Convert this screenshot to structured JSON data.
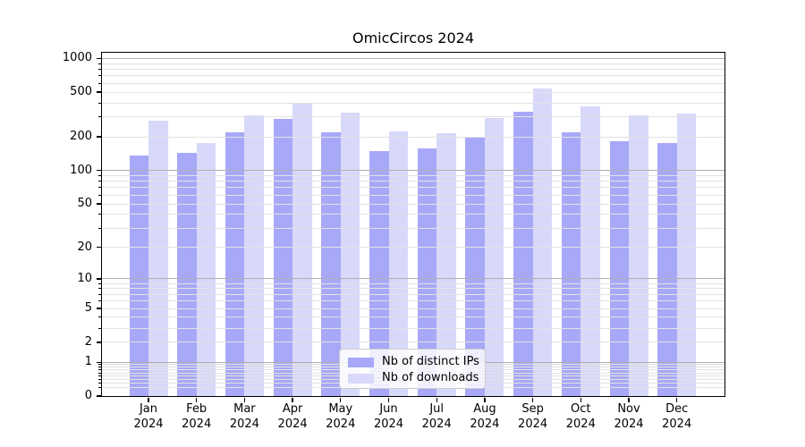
{
  "chart_data": {
    "type": "bar",
    "title": "OmicCircos 2024",
    "x_categories": [
      "Jan",
      "Feb",
      "Mar",
      "Apr",
      "May",
      "Jun",
      "Jul",
      "Aug",
      "Sep",
      "Oct",
      "Nov",
      "Dec"
    ],
    "x_year": "2024",
    "series": [
      {
        "name": "Nb of distinct IPs",
        "color": "#a8a8f8",
        "values": [
          137,
          143,
          218,
          291,
          218,
          148,
          157,
          200,
          333,
          221,
          183,
          176
        ]
      },
      {
        "name": "Nb of downloads",
        "color": "#d8d8fa",
        "values": [
          278,
          176,
          310,
          393,
          327,
          224,
          214,
          293,
          543,
          376,
          313,
          321
        ]
      }
    ],
    "y_axis": {
      "scale": "log10(1+y)",
      "tick_values": [
        1000,
        500,
        200,
        100,
        50,
        20,
        10,
        5,
        2,
        1,
        0
      ],
      "tick_labels": [
        "1000",
        "500",
        "200",
        "100",
        "50",
        "20",
        "10",
        "5",
        "2",
        "1",
        "0"
      ],
      "range": [
        0,
        1100
      ],
      "grid": "both"
    },
    "legend": {
      "position": "lower center"
    }
  },
  "colors": {
    "grid_major": "#b0b0b0",
    "grid_minor": "#e2e2e2",
    "axis": "#000000",
    "text": "#000000"
  }
}
